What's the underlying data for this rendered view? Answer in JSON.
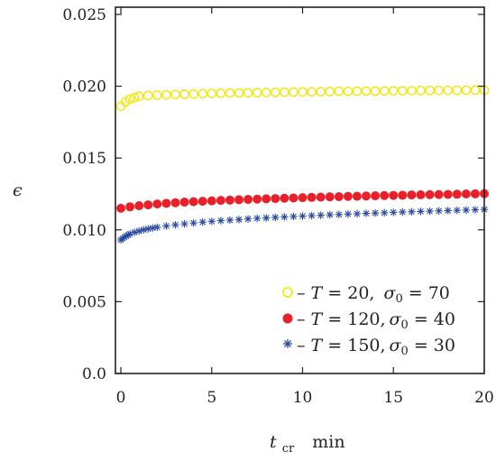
{
  "chart_data": {
    "type": "scatter",
    "title": "",
    "xlabel": "t_cr   min",
    "xlabel_main": "t",
    "xlabel_sub": "cr",
    "xlabel_unit": "min",
    "ylabel": "ϵ",
    "xlim": [
      -0.3,
      20
    ],
    "ylim": [
      0,
      0.0255
    ],
    "x_ticks": [
      0,
      5,
      10,
      15,
      20
    ],
    "x_tick_labels": [
      "0",
      "5",
      "10",
      "15",
      "20"
    ],
    "y_ticks": [
      0,
      0.005,
      0.01,
      0.015,
      0.02,
      0.025
    ],
    "y_tick_labels": [
      "0.0",
      "0.005",
      "0.010",
      "0.015",
      "0.020",
      "0.025"
    ],
    "grid": false,
    "legend_position": "bottom-right",
    "series": [
      {
        "name": "– T = 20,   σ0 = 70",
        "marker": "open-circle",
        "color": "#f2e600",
        "values": [
          [
            0,
            0.0186
          ],
          [
            0.25,
            0.0189
          ],
          [
            0.5,
            0.0191
          ],
          [
            0.75,
            0.0192
          ],
          [
            1,
            0.0193
          ],
          [
            1.5,
            0.01935
          ],
          [
            2,
            0.01938
          ],
          [
            2.5,
            0.0194
          ],
          [
            3,
            0.01942
          ],
          [
            3.5,
            0.01944
          ],
          [
            4,
            0.01946
          ],
          [
            4.5,
            0.01948
          ],
          [
            5,
            0.0195
          ],
          [
            5.5,
            0.01951
          ],
          [
            6,
            0.01952
          ],
          [
            6.5,
            0.01953
          ],
          [
            7,
            0.01954
          ],
          [
            7.5,
            0.01955
          ],
          [
            8,
            0.01956
          ],
          [
            8.5,
            0.01957
          ],
          [
            9,
            0.01958
          ],
          [
            9.5,
            0.01959
          ],
          [
            10,
            0.0196
          ],
          [
            10.5,
            0.01961
          ],
          [
            11,
            0.01962
          ],
          [
            11.5,
            0.01963
          ],
          [
            12,
            0.01964
          ],
          [
            12.5,
            0.01964
          ],
          [
            13,
            0.01965
          ],
          [
            13.5,
            0.01966
          ],
          [
            14,
            0.01966
          ],
          [
            14.5,
            0.01967
          ],
          [
            15,
            0.01968
          ],
          [
            15.5,
            0.01968
          ],
          [
            16,
            0.01969
          ],
          [
            16.5,
            0.0197
          ],
          [
            17,
            0.0197
          ],
          [
            17.5,
            0.01971
          ],
          [
            18,
            0.01971
          ],
          [
            18.5,
            0.01972
          ],
          [
            19,
            0.01972
          ],
          [
            19.5,
            0.01973
          ],
          [
            20,
            0.01973
          ]
        ]
      },
      {
        "name": "– T = 120, σ0 = 40",
        "marker": "filled-circle",
        "color": "#e8202a",
        "values": [
          [
            0,
            0.0115
          ],
          [
            0.5,
            0.0116
          ],
          [
            1,
            0.01168
          ],
          [
            1.5,
            0.01174
          ],
          [
            2,
            0.0118
          ],
          [
            2.5,
            0.01185
          ],
          [
            3,
            0.01189
          ],
          [
            3.5,
            0.01193
          ],
          [
            4,
            0.01196
          ],
          [
            4.5,
            0.01199
          ],
          [
            5,
            0.01202
          ],
          [
            5.5,
            0.01205
          ],
          [
            6,
            0.01207
          ],
          [
            6.5,
            0.0121
          ],
          [
            7,
            0.01212
          ],
          [
            7.5,
            0.01214
          ],
          [
            8,
            0.01216
          ],
          [
            8.5,
            0.01218
          ],
          [
            9,
            0.0122
          ],
          [
            9.5,
            0.01222
          ],
          [
            10,
            0.01224
          ],
          [
            10.5,
            0.01226
          ],
          [
            11,
            0.01228
          ],
          [
            11.5,
            0.0123
          ],
          [
            12,
            0.01231
          ],
          [
            12.5,
            0.01233
          ],
          [
            13,
            0.01234
          ],
          [
            13.5,
            0.01236
          ],
          [
            14,
            0.01237
          ],
          [
            14.5,
            0.01239
          ],
          [
            15,
            0.0124
          ],
          [
            15.5,
            0.01241
          ],
          [
            16,
            0.01243
          ],
          [
            16.5,
            0.01244
          ],
          [
            17,
            0.01245
          ],
          [
            17.5,
            0.01246
          ],
          [
            18,
            0.01247
          ],
          [
            18.5,
            0.01248
          ],
          [
            19,
            0.0125
          ],
          [
            19.5,
            0.01251
          ],
          [
            20,
            0.01252
          ]
        ]
      },
      {
        "name": "– T = 150, σ0 = 30",
        "marker": "asterisk",
        "color": "#2b4aa0",
        "values": [
          [
            0,
            0.0093
          ],
          [
            0.1,
            0.0094
          ],
          [
            0.2,
            0.0095
          ],
          [
            0.3,
            0.00958
          ],
          [
            0.4,
            0.00965
          ],
          [
            0.5,
            0.00971
          ],
          [
            0.75,
            0.00983
          ],
          [
            1,
            0.00992
          ],
          [
            1.25,
            0.01
          ],
          [
            1.5,
            0.01007
          ],
          [
            1.75,
            0.01013
          ],
          [
            2,
            0.01018
          ],
          [
            2.5,
            0.01027
          ],
          [
            3,
            0.01035
          ],
          [
            3.5,
            0.01042
          ],
          [
            4,
            0.01048
          ],
          [
            4.5,
            0.01054
          ],
          [
            5,
            0.01059
          ],
          [
            5.5,
            0.01064
          ],
          [
            6,
            0.01068
          ],
          [
            6.5,
            0.01072
          ],
          [
            7,
            0.01076
          ],
          [
            7.5,
            0.0108
          ],
          [
            8,
            0.01083
          ],
          [
            8.5,
            0.01087
          ],
          [
            9,
            0.0109
          ],
          [
            9.5,
            0.01093
          ],
          [
            10,
            0.01096
          ],
          [
            10.5,
            0.01099
          ],
          [
            11,
            0.01102
          ],
          [
            11.5,
            0.01105
          ],
          [
            12,
            0.01107
          ],
          [
            12.5,
            0.0111
          ],
          [
            13,
            0.01112
          ],
          [
            13.5,
            0.01115
          ],
          [
            14,
            0.01117
          ],
          [
            14.5,
            0.01119
          ],
          [
            15,
            0.01122
          ],
          [
            15.5,
            0.01124
          ],
          [
            16,
            0.01126
          ],
          [
            16.5,
            0.01128
          ],
          [
            17,
            0.0113
          ],
          [
            17.5,
            0.01132
          ],
          [
            18,
            0.01134
          ],
          [
            18.5,
            0.01136
          ],
          [
            19,
            0.01138
          ],
          [
            19.5,
            0.0114
          ],
          [
            20,
            0.01142
          ]
        ]
      }
    ]
  },
  "legend": {
    "items": [
      {
        "prefix": "– ",
        "t_symbol": "T",
        "t_value": " = 20,",
        "sigma_symbol": "σ",
        "sigma_sub": "0",
        "sigma_value": " = 70"
      },
      {
        "prefix": "– ",
        "t_symbol": "T",
        "t_value": " = 120,",
        "sigma_symbol": "σ",
        "sigma_sub": "0",
        "sigma_value": " = 40"
      },
      {
        "prefix": "– ",
        "t_symbol": "T",
        "t_value": " = 150,",
        "sigma_symbol": "σ",
        "sigma_sub": "0",
        "sigma_value": " = 30"
      }
    ]
  }
}
